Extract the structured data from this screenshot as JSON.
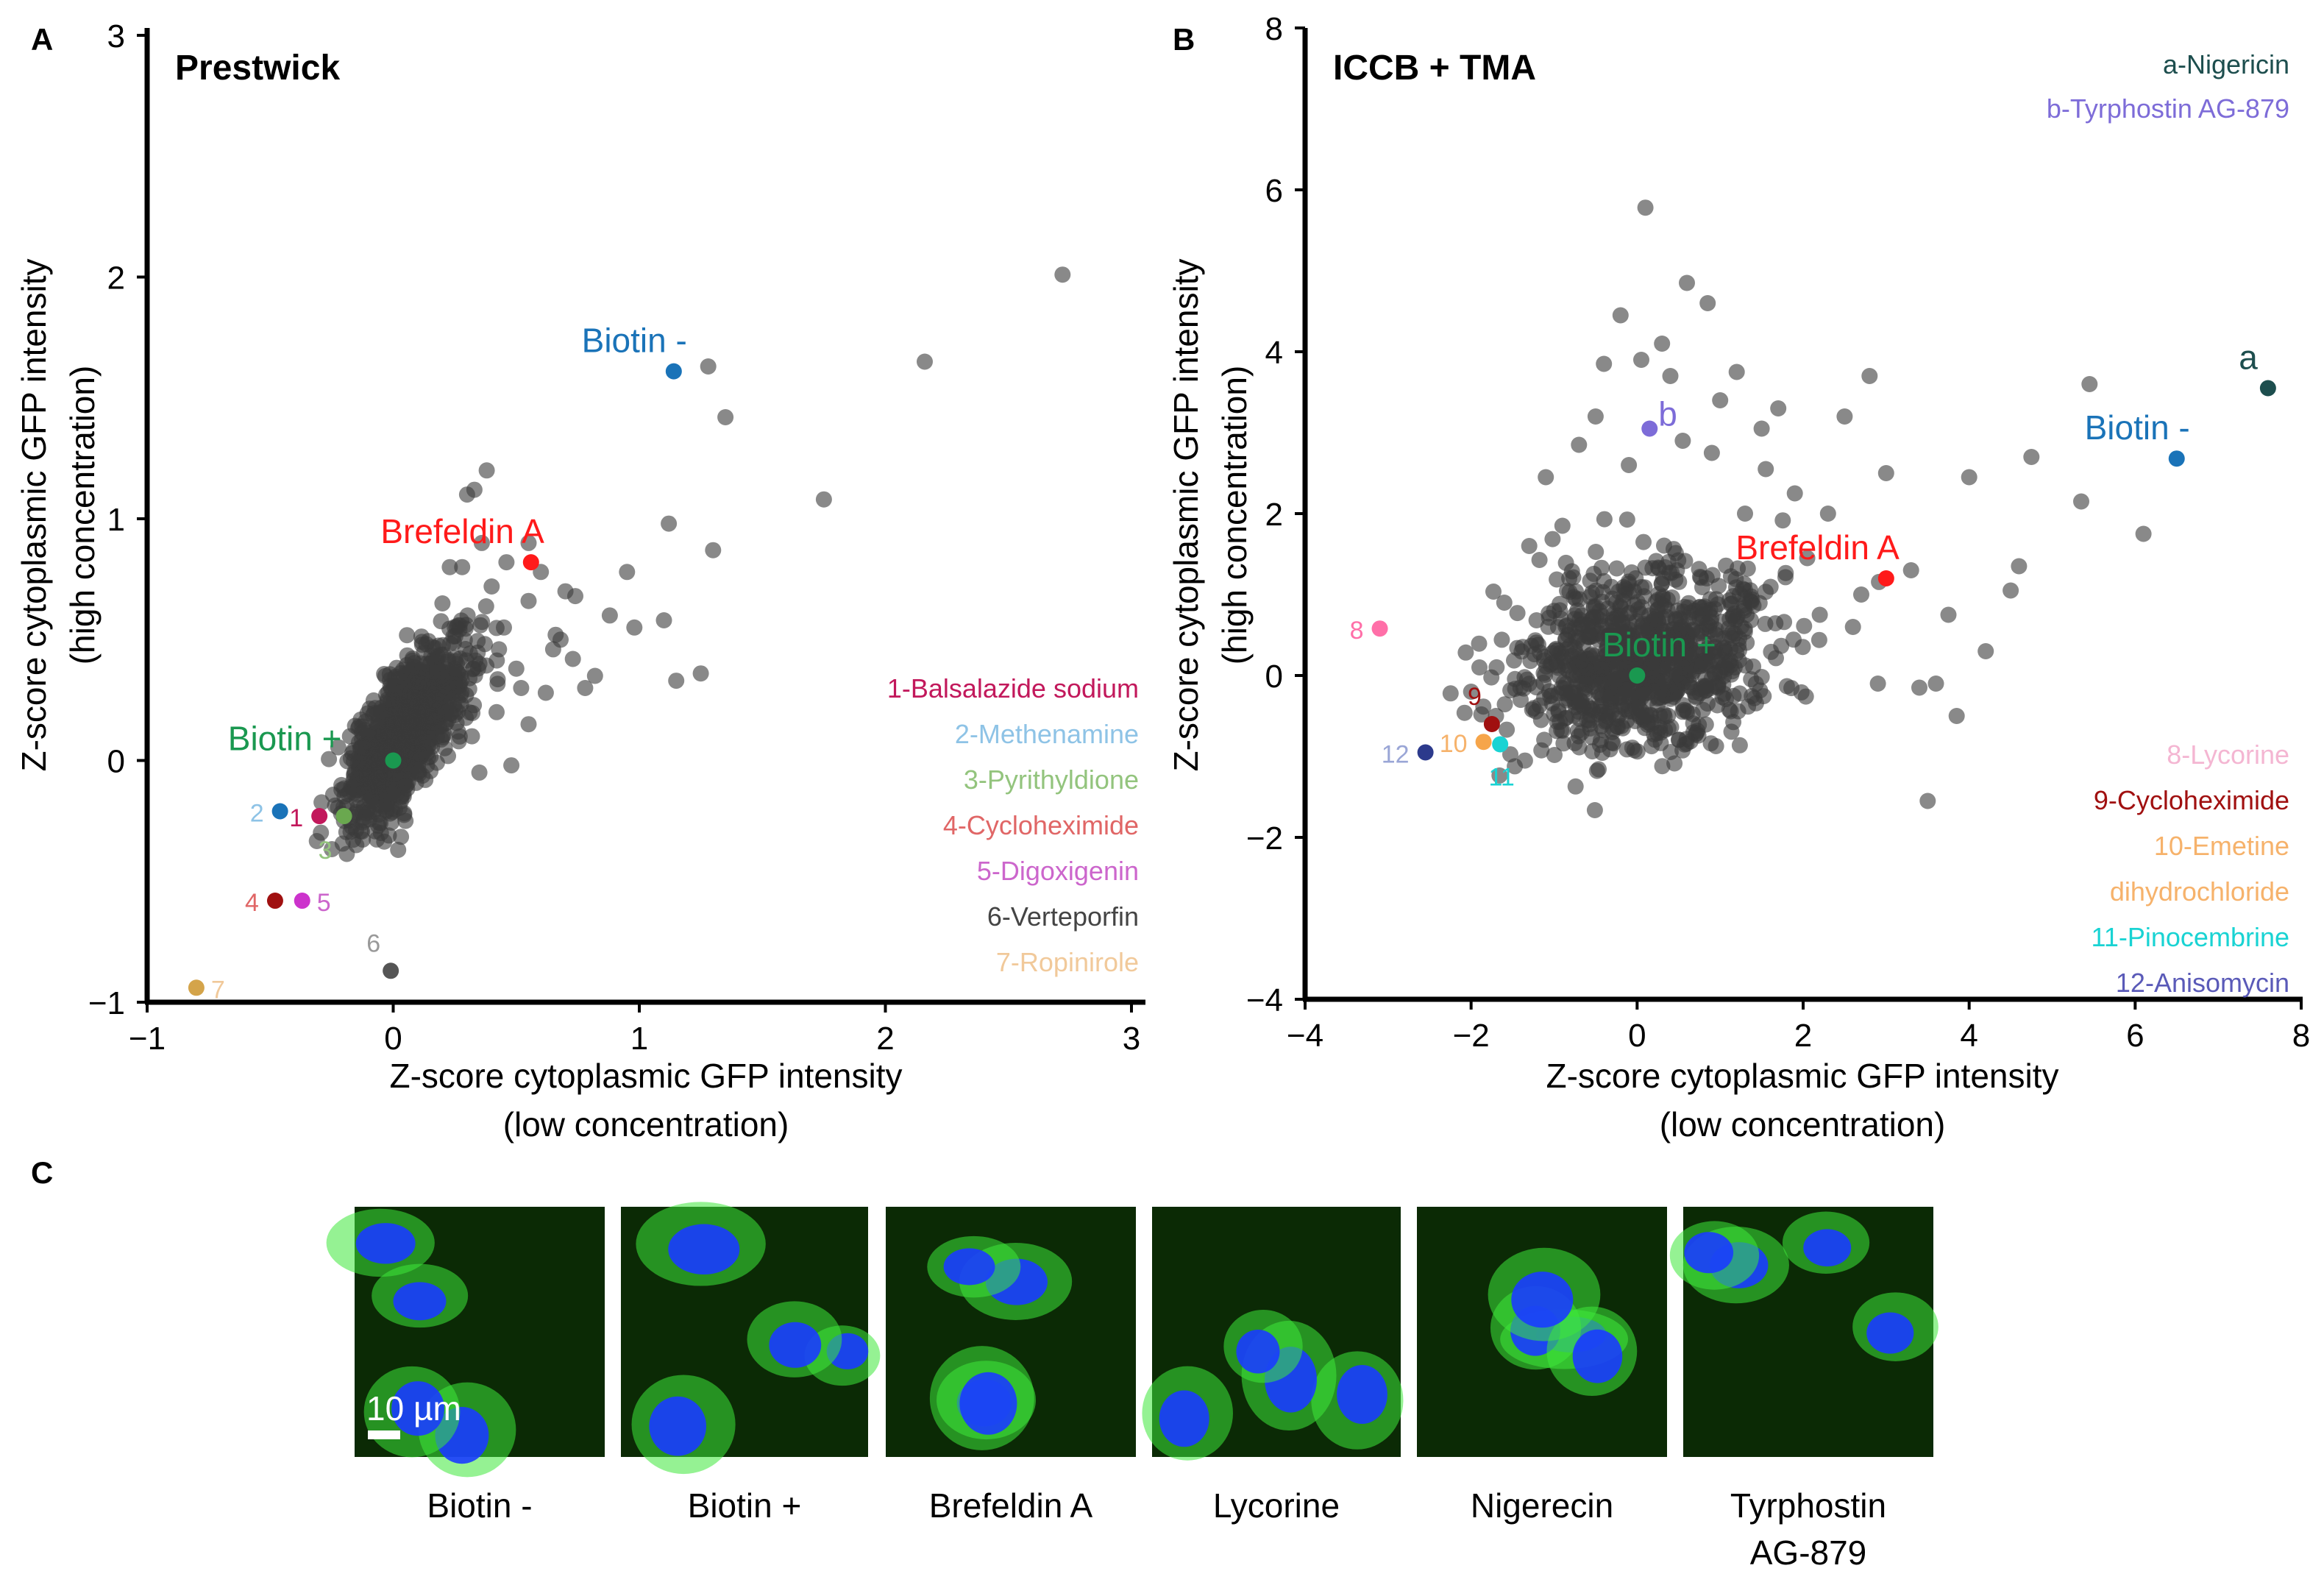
{
  "colors": {
    "cloud": "#3a3a3a",
    "biotin_minus": "#1a73b8",
    "biotin_plus": "#1a9850",
    "brefeldin": "#ff1a1a",
    "nigericin": "#1d4e4e",
    "tyrphostin": "#7d6cd8",
    "cell_bg": "#0b2a05",
    "cell_green": "#3ee83a",
    "cell_blue": "#1a3cff"
  },
  "chart_data": [
    {
      "panel": "A",
      "type": "scatter",
      "title": "Prestwick",
      "xlabel": [
        "Z-score cytoplasmic GFP intensity",
        "(low concentration)"
      ],
      "ylabel": [
        "Z-score cytoplasmic GFP intensity",
        "(high concentration)"
      ],
      "xlim": [
        -1,
        3
      ],
      "ylim": [
        -1,
        3
      ],
      "xticks": [
        "−1",
        "0",
        "1",
        "2",
        "3"
      ],
      "yticks": [
        "−1",
        "0",
        "1",
        "2",
        "3"
      ],
      "cloud": {
        "n": 1100,
        "center": [
          0.05,
          0.12
        ],
        "sd_x": 0.12,
        "sd_y": 0.18,
        "corr": 0.7,
        "outliers": [
          [
            2.72,
            2.01
          ],
          [
            2.16,
            1.65
          ],
          [
            1.75,
            1.08
          ],
          [
            1.35,
            1.42
          ],
          [
            1.28,
            1.63
          ],
          [
            1.3,
            0.87
          ],
          [
            1.12,
            0.98
          ],
          [
            0.95,
            0.78
          ],
          [
            0.98,
            0.55
          ],
          [
            0.82,
            0.35
          ],
          [
            0.73,
            0.42
          ],
          [
            0.66,
            0.52
          ],
          [
            0.7,
            0.7
          ],
          [
            0.88,
            0.6
          ],
          [
            1.1,
            0.58
          ],
          [
            1.25,
            0.36
          ],
          [
            1.15,
            0.33
          ],
          [
            0.55,
            0.66
          ],
          [
            0.45,
            0.55
          ],
          [
            0.62,
            0.28
          ],
          [
            0.5,
            0.38
          ],
          [
            0.42,
            0.2
          ],
          [
            0.35,
            0.4
          ],
          [
            0.55,
            0.15
          ],
          [
            0.32,
            0.1
          ],
          [
            0.48,
            -0.02
          ],
          [
            0.35,
            -0.05
          ],
          [
            0.3,
            1.1
          ],
          [
            0.55,
            0.9
          ],
          [
            0.4,
            0.72
          ],
          [
            0.28,
            0.8
          ],
          [
            0.2,
            0.65
          ],
          [
            0.74,
            0.68
          ],
          [
            0.65,
            0.46
          ],
          [
            0.78,
            0.3
          ],
          [
            0.68,
            0.5
          ],
          [
            0.6,
            0.78
          ],
          [
            0.46,
            0.82
          ],
          [
            0.36,
            0.9
          ],
          [
            0.52,
            0.3
          ],
          [
            -0.15,
            -0.35
          ],
          [
            -0.05,
            -0.3
          ],
          [
            0.02,
            -0.37
          ],
          [
            -0.2,
            -0.25
          ],
          [
            0.05,
            -0.25
          ],
          [
            0.38,
            1.2
          ],
          [
            0.33,
            1.12
          ],
          [
            0.23,
            0.8
          ],
          [
            0.43,
            0.46
          ]
        ]
      },
      "highlights": [
        {
          "label": "Biotin -",
          "x": 1.14,
          "y": 1.61,
          "color": "#1a73b8",
          "anchor": "above-left",
          "big": true
        },
        {
          "label": "Brefeldin A",
          "x": 0.56,
          "y": 0.82,
          "color": "#ff1a1a",
          "anchor": "above-left",
          "big": true
        },
        {
          "label": "Biotin +",
          "x": 0.0,
          "y": 0.0,
          "color": "#1a9850",
          "anchor": "left",
          "big": true
        },
        {
          "label": "2",
          "x": -0.46,
          "y": -0.21,
          "color": "#1a73b8",
          "text_color": "#8ec3e6",
          "anchor": "left"
        },
        {
          "label": "1",
          "x": -0.3,
          "y": -0.23,
          "color": "#c2185b",
          "text_color": "#c2185b",
          "anchor": "left"
        },
        {
          "label": "3",
          "x": -0.2,
          "y": -0.23,
          "color": "#6aa84f",
          "text_color": "#93c47d",
          "anchor": "below-left"
        },
        {
          "label": "4",
          "x": -0.48,
          "y": -0.58,
          "color": "#a01010",
          "text_color": "#e06666",
          "anchor": "left"
        },
        {
          "label": "5",
          "x": -0.37,
          "y": -0.58,
          "color": "#cc33cc",
          "text_color": "#cc66cc",
          "anchor": "right"
        },
        {
          "label": "6",
          "x": -0.01,
          "y": -0.87,
          "color": "#555555",
          "text_color": "#999999",
          "anchor": "above-left"
        },
        {
          "label": "7",
          "x": -0.8,
          "y": -0.94,
          "color": "#d4a44a",
          "text_color": "#f1c99a",
          "anchor": "right"
        }
      ],
      "legend": [
        {
          "text": "1-Balsalazide sodium",
          "color": "#c2185b"
        },
        {
          "text": "2-Methenamine",
          "color": "#8ec3e6"
        },
        {
          "text": "3-Pyrithyldione",
          "color": "#93c47d"
        },
        {
          "text": "4-Cycloheximide",
          "color": "#e06666"
        },
        {
          "text": "5-Digoxigenin",
          "color": "#cc66cc"
        },
        {
          "text": "6-Verteporfin",
          "color": "#444444"
        },
        {
          "text": "7-Ropinirole",
          "color": "#f1c99a"
        }
      ]
    },
    {
      "panel": "B",
      "type": "scatter",
      "title": "ICCB + TMA",
      "xlabel": [
        "Z-score cytoplasmic GFP intensity",
        "(low concentration)"
      ],
      "ylabel": [
        "Z-score cytoplasmic GFP intensity",
        "(high concentration)"
      ],
      "xlim": [
        -4,
        8
      ],
      "ylim": [
        -4,
        8
      ],
      "xticks": [
        "−4",
        "−2",
        "0",
        "2",
        "4",
        "6",
        "8"
      ],
      "yticks": [
        "−4",
        "−2",
        "0",
        "2",
        "4",
        "6",
        "8"
      ],
      "cloud": {
        "n": 1000,
        "center": [
          0.1,
          0.2
        ],
        "sd_x": 0.75,
        "sd_y": 0.55,
        "corr": 0.25,
        "outliers": [
          [
            0.1,
            5.78
          ],
          [
            0.6,
            4.85
          ],
          [
            0.85,
            4.6
          ],
          [
            -0.2,
            4.45
          ],
          [
            0.3,
            4.1
          ],
          [
            0.05,
            3.9
          ],
          [
            -0.4,
            3.85
          ],
          [
            1.2,
            3.75
          ],
          [
            0.4,
            3.7
          ],
          [
            1.0,
            3.4
          ],
          [
            -0.5,
            3.2
          ],
          [
            1.5,
            3.05
          ],
          [
            2.5,
            3.2
          ],
          [
            2.8,
            3.7
          ],
          [
            3.0,
            2.5
          ],
          [
            4.0,
            2.45
          ],
          [
            4.75,
            2.7
          ],
          [
            5.45,
            3.6
          ],
          [
            5.35,
            2.15
          ],
          [
            6.1,
            1.75
          ],
          [
            4.5,
            1.05
          ],
          [
            4.6,
            1.35
          ],
          [
            3.75,
            0.75
          ],
          [
            4.2,
            0.3
          ],
          [
            2.9,
            -0.1
          ],
          [
            3.4,
            -0.15
          ],
          [
            3.6,
            -0.1
          ],
          [
            3.5,
            -1.55
          ],
          [
            2.6,
            0.6
          ],
          [
            2.2,
            0.75
          ],
          [
            3.3,
            1.3
          ],
          [
            2.3,
            2.0
          ],
          [
            2.05,
            1.45
          ],
          [
            -1.9,
            0.1
          ],
          [
            -2.0,
            -0.2
          ],
          [
            -1.7,
            -0.5
          ],
          [
            -1.1,
            2.45
          ],
          [
            -1.3,
            1.6
          ],
          [
            -0.9,
            1.85
          ],
          [
            1.55,
            2.55
          ],
          [
            1.9,
            2.25
          ],
          [
            1.3,
            2.0
          ],
          [
            0.55,
            2.9
          ],
          [
            -0.1,
            2.6
          ],
          [
            0.9,
            2.75
          ],
          [
            1.7,
            3.3
          ],
          [
            -0.7,
            2.85
          ],
          [
            3.85,
            -0.5
          ],
          [
            2.7,
            1.0
          ],
          [
            -1.6,
            0.9
          ]
        ]
      },
      "highlights": [
        {
          "label": "a",
          "x": 7.6,
          "y": 3.55,
          "color": "#1d4e4e",
          "text_color": "#1d4e4e",
          "anchor": "above-left",
          "big": true
        },
        {
          "label": "b",
          "x": 0.15,
          "y": 3.05,
          "color": "#7d6cd8",
          "text_color": "#7d6cd8",
          "anchor": "above-right",
          "big": true
        },
        {
          "label": "Biotin -",
          "x": 6.5,
          "y": 2.68,
          "color": "#1a73b8",
          "anchor": "above-left",
          "big": true
        },
        {
          "label": "Brefeldin A",
          "x": 3.0,
          "y": 1.2,
          "color": "#ff1a1a",
          "anchor": "above-left",
          "big": true
        },
        {
          "label": "Biotin +",
          "x": 0.0,
          "y": 0.0,
          "color": "#1a9850",
          "anchor": "above",
          "big": true
        },
        {
          "label": "8",
          "x": -3.1,
          "y": 0.58,
          "color": "#ff6fa8",
          "text_color": "#ff6fa8",
          "anchor": "left"
        },
        {
          "label": "9",
          "x": -1.75,
          "y": -0.6,
          "color": "#a01010",
          "text_color": "#a01010",
          "anchor": "above-left"
        },
        {
          "label": "10",
          "x": -1.85,
          "y": -0.82,
          "color": "#f6a54a",
          "text_color": "#f6b26b",
          "anchor": "left"
        },
        {
          "label": "11",
          "x": -1.65,
          "y": -0.85,
          "color": "#19d3d3",
          "text_color": "#19d3d3",
          "anchor": "below"
        },
        {
          "label": "12",
          "x": -2.55,
          "y": -0.95,
          "color": "#2c3a8c",
          "text_color": "#9aa6d6",
          "anchor": "left"
        }
      ],
      "legend_top": [
        {
          "text": "a-Nigericin",
          "color": "#1d4e4e"
        },
        {
          "text": "b-Tyrphostin AG-879",
          "color": "#7d6cd8"
        }
      ],
      "legend": [
        {
          "text": "8-Lycorine",
          "color": "#f4b6d2"
        },
        {
          "text": "9-Cycloheximide",
          "color": "#a01010"
        },
        {
          "text": "10-Emetine",
          "color": "#f6b26b"
        },
        {
          "text": "dihydrochloride",
          "color": "#f6b26b"
        },
        {
          "text": "11-Pinocembrine",
          "color": "#19d3d3"
        },
        {
          "text": "12-Anisomycin",
          "color": "#5a5ab8"
        }
      ]
    }
  ],
  "panel_c": {
    "letter": "C",
    "scale_bar": "10 µm",
    "images": [
      {
        "caption": "Biotin -"
      },
      {
        "caption": "Biotin +"
      },
      {
        "caption": "Brefeldin A"
      },
      {
        "caption": "Lycorine"
      },
      {
        "caption": "Nigerecin"
      },
      {
        "caption": "Tyrphostin",
        "caption2": "AG-879"
      }
    ]
  }
}
